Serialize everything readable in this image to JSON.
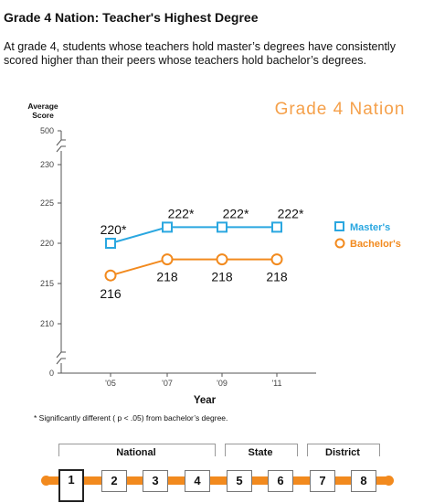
{
  "header": {
    "title": "Grade 4 Nation: Teacher's Highest Degree",
    "subtitle": "At grade 4, students whose teachers hold master’s degrees have consistently scored higher than their peers whose teachers hold bachelor’s degrees."
  },
  "chart_data": {
    "type": "line",
    "watermark": "Grade 4 Nation",
    "ylabel": "Average Score",
    "xlabel": "Year",
    "categories": [
      "'05",
      "'07",
      "'09",
      "'11"
    ],
    "y_ticks": [
      "0",
      "210",
      "215",
      "220",
      "225",
      "230",
      "500"
    ],
    "y_range_shown": [
      207,
      233
    ],
    "axis_breaks": [
      "0",
      "500"
    ],
    "series": [
      {
        "name": "Master's",
        "values": [
          220,
          222,
          222,
          222
        ],
        "labels": [
          "220*",
          "222*",
          "222*",
          "222*"
        ],
        "marker": "square",
        "color": "#2aa7e0"
      },
      {
        "name": "Bachelor's",
        "values": [
          216,
          218,
          218,
          218
        ],
        "labels": [
          "216",
          "218",
          "218",
          "218"
        ],
        "marker": "circle",
        "color": "#f28a1e"
      }
    ],
    "legend_position": "right",
    "footnote": "* Significantly different ( p < .05) from bachelor’s degree."
  },
  "nav": {
    "groups": [
      "National",
      "State",
      "District"
    ],
    "steps": [
      "1",
      "2",
      "3",
      "4",
      "5",
      "6",
      "7",
      "8"
    ],
    "active_step": "1",
    "accent": "#f28a1e"
  }
}
